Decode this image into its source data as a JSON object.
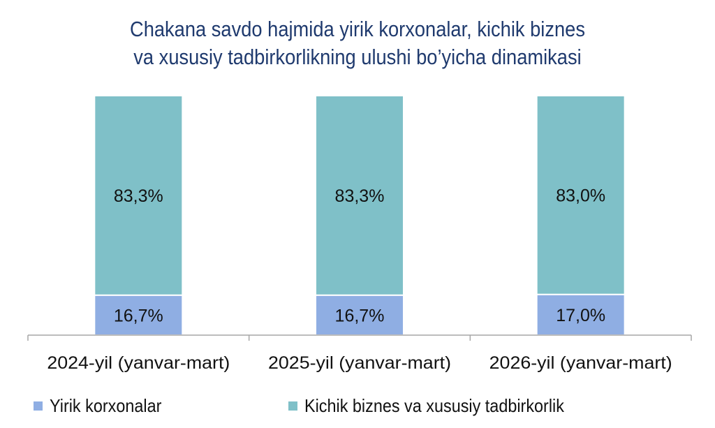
{
  "title": {
    "line1": "Chakana savdo hajmida yirik korxonalar, kichik biznes",
    "line2": "va xususiy tadbirkorlikning ulushi bo’yicha dinamikasi"
  },
  "colors": {
    "series1": "#8faee3",
    "series2": "#7fc0c8",
    "axis": "#a6a6a6",
    "title": "#1f3a6e"
  },
  "chart_data": {
    "type": "bar",
    "stacked": true,
    "categories": [
      "2024-yil (yanvar-mart)",
      "2025-yil (yanvar-mart)",
      "2026-yil (yanvar-mart)"
    ],
    "series": [
      {
        "name": "Yirik korxonalar",
        "values": [
          16.7,
          16.7,
          17.0
        ],
        "labels": [
          "16,7%",
          "16,7%",
          "17,0%"
        ]
      },
      {
        "name": "Kichik biznes va xususiy tadbirkorlik",
        "values": [
          83.3,
          83.3,
          83.0
        ],
        "labels": [
          "83,3%",
          "83,3%",
          "83,0%"
        ]
      }
    ],
    "ylim": [
      0,
      100
    ],
    "legend": "bottom"
  }
}
